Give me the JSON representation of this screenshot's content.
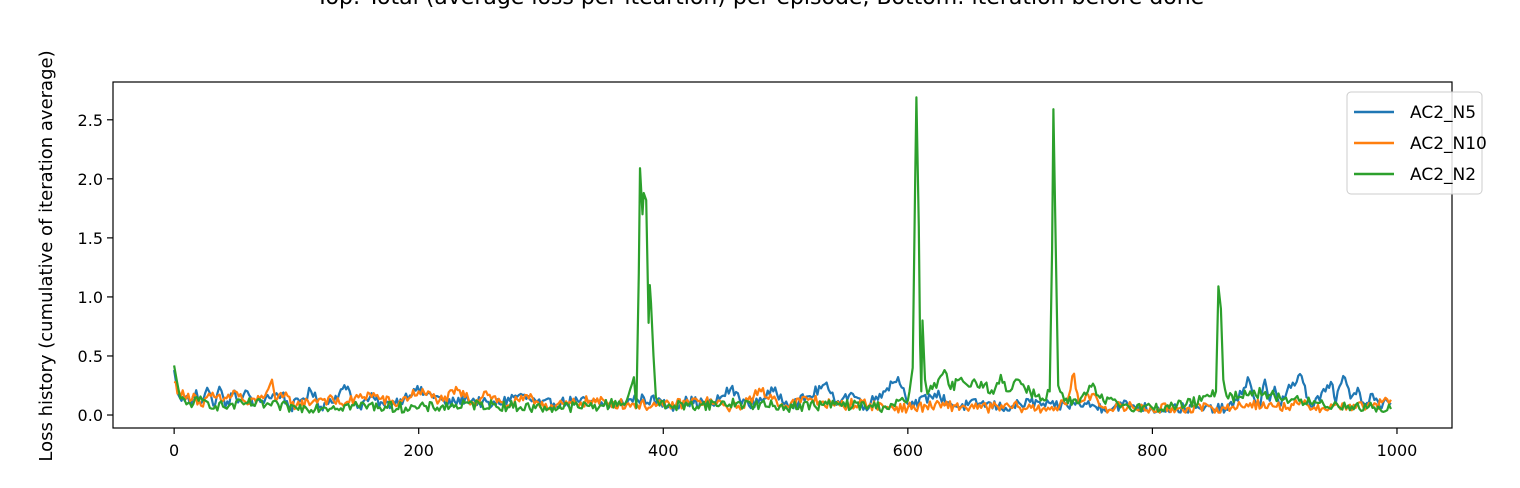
{
  "chart_data": {
    "type": "line",
    "title": "Top: Total (average loss per iteartion) per episode, Bottom: iteration before done",
    "xlabel": "",
    "ylabel": "Loss history (cumulative of iteration average)",
    "xlim": [
      -50,
      1045
    ],
    "ylim": [
      -0.11,
      2.82
    ],
    "xticks": [
      0,
      200,
      400,
      600,
      800,
      1000
    ],
    "yticks": [
      0.0,
      0.5,
      1.0,
      1.5,
      2.0,
      2.5
    ],
    "xtick_labels": [
      "0",
      "200",
      "400",
      "600",
      "800",
      "1000"
    ],
    "ytick_labels": [
      "0.0",
      "0.5",
      "1.0",
      "1.5",
      "2.0",
      "2.5"
    ],
    "grid": false,
    "legend_position": "top-right",
    "legend": [
      "AC2_N5",
      "AC2_N10",
      "AC2_N2"
    ],
    "series": [
      {
        "name": "AC2_N5",
        "color": "#1f77b4",
        "baseline": 0.09,
        "x_range": [
          0,
          995
        ],
        "points": [
          [
            0,
            0.38
          ],
          [
            3,
            0.18
          ],
          [
            6,
            0.12
          ],
          [
            10,
            0.16
          ],
          [
            14,
            0.09
          ],
          [
            18,
            0.21
          ],
          [
            22,
            0.1
          ],
          [
            27,
            0.23
          ],
          [
            32,
            0.08
          ],
          [
            37,
            0.24
          ],
          [
            42,
            0.07
          ],
          [
            48,
            0.18
          ],
          [
            55,
            0.12
          ],
          [
            60,
            0.2
          ],
          [
            66,
            0.08
          ],
          [
            75,
            0.15
          ],
          [
            88,
            0.18
          ],
          [
            95,
            0.06
          ],
          [
            104,
            0.13
          ],
          [
            112,
            0.2
          ],
          [
            120,
            0.07
          ],
          [
            135,
            0.18
          ],
          [
            142,
            0.24
          ],
          [
            150,
            0.06
          ],
          [
            160,
            0.15
          ],
          [
            172,
            0.08
          ],
          [
            188,
            0.14
          ],
          [
            196,
            0.22
          ],
          [
            205,
            0.18
          ],
          [
            215,
            0.16
          ],
          [
            222,
            0.09
          ],
          [
            240,
            0.14
          ],
          [
            260,
            0.08
          ],
          [
            282,
            0.17
          ],
          [
            300,
            0.09
          ],
          [
            330,
            0.12
          ],
          [
            360,
            0.08
          ],
          [
            378,
            0.14
          ],
          [
            395,
            0.12
          ],
          [
            405,
            0.07
          ],
          [
            420,
            0.12
          ],
          [
            440,
            0.09
          ],
          [
            455,
            0.22
          ],
          [
            470,
            0.08
          ],
          [
            490,
            0.2
          ],
          [
            505,
            0.09
          ],
          [
            520,
            0.16
          ],
          [
            532,
            0.26
          ],
          [
            540,
            0.12
          ],
          [
            555,
            0.18
          ],
          [
            565,
            0.07
          ],
          [
            580,
            0.2
          ],
          [
            592,
            0.32
          ],
          [
            598,
            0.16
          ],
          [
            605,
            0.08
          ],
          [
            622,
            0.18
          ],
          [
            640,
            0.07
          ],
          [
            660,
            0.1
          ],
          [
            680,
            0.06
          ],
          [
            700,
            0.11
          ],
          [
            720,
            0.07
          ],
          [
            740,
            0.1
          ],
          [
            760,
            0.06
          ],
          [
            780,
            0.09
          ],
          [
            800,
            0.05
          ],
          [
            820,
            0.06
          ],
          [
            840,
            0.05
          ],
          [
            860,
            0.05
          ],
          [
            870,
            0.12
          ],
          [
            878,
            0.32
          ],
          [
            882,
            0.18
          ],
          [
            888,
            0.06
          ],
          [
            892,
            0.3
          ],
          [
            896,
            0.12
          ],
          [
            900,
            0.24
          ],
          [
            905,
            0.08
          ],
          [
            910,
            0.2
          ],
          [
            918,
            0.28
          ],
          [
            922,
            0.33
          ],
          [
            926,
            0.15
          ],
          [
            932,
            0.08
          ],
          [
            940,
            0.22
          ],
          [
            946,
            0.28
          ],
          [
            950,
            0.1
          ],
          [
            956,
            0.33
          ],
          [
            962,
            0.14
          ],
          [
            968,
            0.23
          ],
          [
            974,
            0.08
          ],
          [
            980,
            0.18
          ],
          [
            986,
            0.07
          ],
          [
            992,
            0.12
          ],
          [
            995,
            0.09
          ]
        ]
      },
      {
        "name": "AC2_N10",
        "color": "#ff7f0e",
        "baseline": 0.08,
        "x_range": [
          0,
          995
        ],
        "points": [
          [
            0,
            0.28
          ],
          [
            4,
            0.2
          ],
          [
            10,
            0.14
          ],
          [
            16,
            0.18
          ],
          [
            22,
            0.08
          ],
          [
            30,
            0.16
          ],
          [
            40,
            0.12
          ],
          [
            50,
            0.2
          ],
          [
            60,
            0.09
          ],
          [
            70,
            0.14
          ],
          [
            77,
            0.22
          ],
          [
            80,
            0.3
          ],
          [
            83,
            0.12
          ],
          [
            90,
            0.16
          ],
          [
            100,
            0.08
          ],
          [
            120,
            0.14
          ],
          [
            140,
            0.1
          ],
          [
            160,
            0.18
          ],
          [
            180,
            0.09
          ],
          [
            200,
            0.2
          ],
          [
            220,
            0.12
          ],
          [
            232,
            0.21
          ],
          [
            245,
            0.1
          ],
          [
            255,
            0.2
          ],
          [
            270,
            0.08
          ],
          [
            290,
            0.14
          ],
          [
            310,
            0.07
          ],
          [
            340,
            0.12
          ],
          [
            370,
            0.09
          ],
          [
            400,
            0.08
          ],
          [
            430,
            0.12
          ],
          [
            460,
            0.06
          ],
          [
            480,
            0.2
          ],
          [
            500,
            0.08
          ],
          [
            520,
            0.14
          ],
          [
            540,
            0.08
          ],
          [
            560,
            0.1
          ],
          [
            580,
            0.07
          ],
          [
            600,
            0.06
          ],
          [
            630,
            0.08
          ],
          [
            660,
            0.06
          ],
          [
            690,
            0.07
          ],
          [
            710,
            0.05
          ],
          [
            730,
            0.09
          ],
          [
            736,
            0.35
          ],
          [
            740,
            0.1
          ],
          [
            752,
            0.18
          ],
          [
            760,
            0.06
          ],
          [
            780,
            0.07
          ],
          [
            800,
            0.05
          ],
          [
            830,
            0.06
          ],
          [
            860,
            0.05
          ],
          [
            880,
            0.1
          ],
          [
            900,
            0.07
          ],
          [
            920,
            0.09
          ],
          [
            940,
            0.06
          ],
          [
            960,
            0.08
          ],
          [
            980,
            0.07
          ],
          [
            995,
            0.13
          ]
        ]
      },
      {
        "name": "AC2_N2",
        "color": "#2ca02c",
        "baseline": 0.06,
        "x_range": [
          0,
          995
        ],
        "points": [
          [
            0,
            0.42
          ],
          [
            2,
            0.3
          ],
          [
            5,
            0.14
          ],
          [
            10,
            0.09
          ],
          [
            20,
            0.12
          ],
          [
            40,
            0.07
          ],
          [
            60,
            0.1
          ],
          [
            100,
            0.06
          ],
          [
            150,
            0.08
          ],
          [
            200,
            0.06
          ],
          [
            250,
            0.09
          ],
          [
            300,
            0.06
          ],
          [
            350,
            0.08
          ],
          [
            370,
            0.12
          ],
          [
            376,
            0.32
          ],
          [
            378,
            0.06
          ],
          [
            380,
            1.2
          ],
          [
            381,
            2.09
          ],
          [
            383,
            1.7
          ],
          [
            384,
            1.88
          ],
          [
            386,
            1.82
          ],
          [
            387,
            1.3
          ],
          [
            388,
            0.78
          ],
          [
            389,
            1.1
          ],
          [
            390,
            0.95
          ],
          [
            392,
            0.5
          ],
          [
            394,
            0.15
          ],
          [
            397,
            0.08
          ],
          [
            420,
            0.08
          ],
          [
            460,
            0.1
          ],
          [
            500,
            0.07
          ],
          [
            540,
            0.09
          ],
          [
            580,
            0.07
          ],
          [
            600,
            0.12
          ],
          [
            604,
            0.4
          ],
          [
            606,
            2.0
          ],
          [
            607,
            2.69
          ],
          [
            609,
            1.6
          ],
          [
            610,
            0.6
          ],
          [
            611,
            0.2
          ],
          [
            612,
            0.8
          ],
          [
            614,
            0.3
          ],
          [
            616,
            0.18
          ],
          [
            620,
            0.22
          ],
          [
            625,
            0.3
          ],
          [
            630,
            0.38
          ],
          [
            635,
            0.22
          ],
          [
            642,
            0.3
          ],
          [
            650,
            0.24
          ],
          [
            660,
            0.28
          ],
          [
            670,
            0.18
          ],
          [
            676,
            0.34
          ],
          [
            682,
            0.2
          ],
          [
            690,
            0.3
          ],
          [
            700,
            0.2
          ],
          [
            710,
            0.14
          ],
          [
            716,
            0.2
          ],
          [
            718,
            1.4
          ],
          [
            719,
            2.59
          ],
          [
            721,
            1.4
          ],
          [
            723,
            0.25
          ],
          [
            728,
            0.12
          ],
          [
            740,
            0.1
          ],
          [
            750,
            0.24
          ],
          [
            760,
            0.12
          ],
          [
            780,
            0.08
          ],
          [
            800,
            0.06
          ],
          [
            820,
            0.08
          ],
          [
            840,
            0.12
          ],
          [
            848,
            0.16
          ],
          [
            852,
            0.2
          ],
          [
            854,
            1.09
          ],
          [
            856,
            0.9
          ],
          [
            858,
            0.3
          ],
          [
            862,
            0.14
          ],
          [
            880,
            0.2
          ],
          [
            900,
            0.16
          ],
          [
            920,
            0.12
          ],
          [
            940,
            0.09
          ],
          [
            960,
            0.08
          ],
          [
            980,
            0.06
          ],
          [
            995,
            0.05
          ]
        ]
      }
    ]
  }
}
